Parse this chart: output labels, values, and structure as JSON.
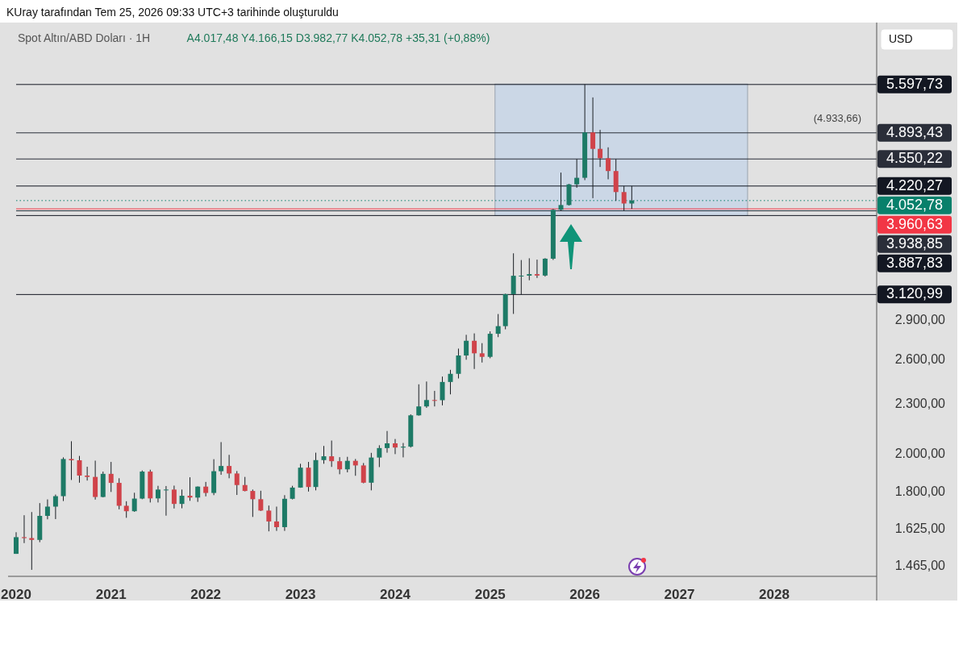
{
  "chart_data": {
    "type": "candlestick",
    "title": "Spot Altın/ABD Doları · 1H",
    "subtitle": "A4.017,48 Y4.166,15 D3.982,77 K4.052,78 +35,31 (+0,88%)",
    "annotations": [
      "KUray tarafından Tem 25, 2026 09:33 UTC+3 tarihinde oluşturuldu",
      "USD",
      {
        "text": "(4.933,66)",
        "x": "2028-09",
        "y": 4933.66
      }
    ],
    "log": "y",
    "x": [
      "2020-01",
      "2020-02",
      "2020-03",
      "2020-04",
      "2020-05",
      "2020-06",
      "2020-07",
      "2020-08",
      "2020-09",
      "2020-10",
      "2020-11",
      "2020-12",
      "2021-01",
      "2021-02",
      "2021-03",
      "2021-04",
      "2021-05",
      "2021-06",
      "2021-07",
      "2021-08",
      "2021-09",
      "2021-10",
      "2021-11",
      "2021-12",
      "2022-01",
      "2022-02",
      "2022-03",
      "2022-04",
      "2022-05",
      "2022-06",
      "2022-07",
      "2022-08",
      "2022-09",
      "2022-10",
      "2022-11",
      "2022-12",
      "2023-01",
      "2023-02",
      "2023-03",
      "2023-04",
      "2023-05",
      "2023-06",
      "2023-07",
      "2023-08",
      "2023-09",
      "2023-10",
      "2023-11",
      "2023-12",
      "2024-01",
      "2024-02",
      "2024-03",
      "2024-04",
      "2024-05",
      "2024-06",
      "2024-07",
      "2024-08",
      "2024-09",
      "2024-10",
      "2024-11",
      "2024-12",
      "2025-01",
      "2025-02",
      "2025-03",
      "2025-04",
      "2025-05",
      "2025-06",
      "2025-07",
      "2025-08",
      "2025-09",
      "2025-10",
      "2025-11",
      "2025-12",
      "2026-01",
      "2026-02",
      "2026-03",
      "2026-04",
      "2026-05",
      "2026-06",
      "2026-07"
    ],
    "ohlc": [
      [
        1517,
        1611,
        1517,
        1589
      ],
      [
        1589,
        1689,
        1563,
        1585
      ],
      [
        1585,
        1704,
        1451,
        1577
      ],
      [
        1577,
        1747,
        1567,
        1686
      ],
      [
        1686,
        1765,
        1670,
        1730
      ],
      [
        1730,
        1789,
        1671,
        1781
      ],
      [
        1781,
        1984,
        1757,
        1975
      ],
      [
        1975,
        2075,
        1863,
        1968
      ],
      [
        1968,
        1992,
        1849,
        1886
      ],
      [
        1886,
        1933,
        1860,
        1879
      ],
      [
        1879,
        1966,
        1764,
        1777
      ],
      [
        1777,
        1907,
        1775,
        1895
      ],
      [
        1895,
        1959,
        1802,
        1848
      ],
      [
        1848,
        1872,
        1717,
        1734
      ],
      [
        1734,
        1756,
        1677,
        1708
      ],
      [
        1708,
        1798,
        1705,
        1769
      ],
      [
        1769,
        1913,
        1766,
        1907
      ],
      [
        1907,
        1917,
        1750,
        1770
      ],
      [
        1770,
        1833,
        1750,
        1814
      ],
      [
        1814,
        1832,
        1687,
        1814
      ],
      [
        1814,
        1834,
        1721,
        1743
      ],
      [
        1743,
        1814,
        1722,
        1783
      ],
      [
        1783,
        1877,
        1758,
        1774
      ],
      [
        1774,
        1830,
        1753,
        1829
      ],
      [
        1829,
        1853,
        1780,
        1797
      ],
      [
        1797,
        1974,
        1786,
        1909
      ],
      [
        1909,
        2070,
        1890,
        1937
      ],
      [
        1937,
        1998,
        1872,
        1897
      ],
      [
        1897,
        1910,
        1787,
        1837
      ],
      [
        1837,
        1879,
        1805,
        1807
      ],
      [
        1807,
        1814,
        1681,
        1766
      ],
      [
        1766,
        1808,
        1709,
        1711
      ],
      [
        1711,
        1735,
        1615,
        1660
      ],
      [
        1660,
        1730,
        1617,
        1634
      ],
      [
        1634,
        1786,
        1617,
        1768
      ],
      [
        1768,
        1833,
        1765,
        1824
      ],
      [
        1824,
        1949,
        1823,
        1928
      ],
      [
        1928,
        1959,
        1804,
        1827
      ],
      [
        1827,
        2010,
        1810,
        1969
      ],
      [
        1969,
        2048,
        1949,
        1990
      ],
      [
        1990,
        2079,
        1932,
        1963
      ],
      [
        1963,
        1985,
        1893,
        1919
      ],
      [
        1919,
        1987,
        1903,
        1965
      ],
      [
        1965,
        1975,
        1885,
        1940
      ],
      [
        1940,
        1953,
        1846,
        1849
      ],
      [
        1849,
        2009,
        1810,
        1983
      ],
      [
        1983,
        2052,
        1931,
        2036
      ],
      [
        2036,
        2135,
        2010,
        2063
      ],
      [
        2063,
        2088,
        2002,
        2039
      ],
      [
        2039,
        2065,
        1984,
        2044
      ],
      [
        2044,
        2236,
        2039,
        2230
      ],
      [
        2230,
        2431,
        2228,
        2286
      ],
      [
        2286,
        2450,
        2277,
        2327
      ],
      [
        2327,
        2387,
        2286,
        2326
      ],
      [
        2326,
        2484,
        2293,
        2447
      ],
      [
        2447,
        2531,
        2364,
        2503
      ],
      [
        2503,
        2685,
        2471,
        2634
      ],
      [
        2634,
        2790,
        2603,
        2744
      ],
      [
        2744,
        2801,
        2537,
        2650
      ],
      [
        2650,
        2726,
        2583,
        2624
      ],
      [
        2624,
        2817,
        2614,
        2798
      ],
      [
        2798,
        2956,
        2772,
        2858
      ],
      [
        2858,
        3128,
        2833,
        3124
      ],
      [
        3124,
        3500,
        2957,
        3288
      ],
      [
        3288,
        3435,
        3120.99,
        3289
      ],
      [
        3289,
        3452,
        3247,
        3303
      ],
      [
        3303,
        3439,
        3268,
        3290
      ],
      [
        3290,
        3453,
        3281,
        3448
      ],
      [
        3448,
        3960,
        3436,
        3950
      ],
      [
        3950,
        4381,
        3938.85,
        4003
      ],
      [
        4003,
        4245,
        3998,
        4240
      ],
      [
        4240,
        4550,
        4200,
        4318
      ],
      [
        4318,
        5597.73,
        4290,
        4900
      ],
      [
        4900,
        5400,
        4080,
        4680
      ],
      [
        4680,
        4933.66,
        4450,
        4560
      ],
      [
        4560,
        4700,
        4300,
        4400
      ],
      [
        4400,
        4550.22,
        4050,
        4150
      ],
      [
        4150,
        4220.27,
        3938.85,
        4020
      ],
      [
        4020,
        4220,
        3960.63,
        4052.78
      ]
    ],
    "xlim": [
      "2020-01-01",
      "2029-01-30"
    ],
    "xticks": [
      {
        "value": "2020",
        "label": "2020"
      },
      {
        "value": "2021",
        "label": "2021"
      },
      {
        "value": "2022",
        "label": "2022"
      },
      {
        "value": "2023",
        "label": "2023"
      },
      {
        "value": "2024",
        "label": "2024"
      },
      {
        "value": "2025",
        "label": "2025"
      },
      {
        "value": "2026",
        "label": "2026"
      },
      {
        "value": "2027",
        "label": "2027"
      },
      {
        "value": "2028",
        "label": "2028"
      }
    ],
    "ylim": [
      1425,
      6650
    ],
    "yticks": [
      {
        "value": 1465,
        "label": "1.465,00"
      },
      {
        "value": 1625,
        "label": "1.625,00"
      },
      {
        "value": 1800,
        "label": "1.800,00"
      },
      {
        "value": 2000,
        "label": "2.000,00"
      },
      {
        "value": 2300,
        "label": "2.300,00"
      },
      {
        "value": 2600,
        "label": "2.600,00"
      },
      {
        "value": 2900,
        "label": "2.900,00"
      }
    ],
    "ref_lines": [
      {
        "axis": "y",
        "value": 5597.73,
        "label": "5.597,73",
        "color": "#131722"
      },
      {
        "axis": "y",
        "value": 4893.43,
        "label": "4.893,43",
        "color": "#2a2e39"
      },
      {
        "axis": "y",
        "value": 4550.22,
        "label": "4.550,22",
        "color": "#2a2e39"
      },
      {
        "axis": "y",
        "value": 4220.27,
        "label": "4.220,27",
        "color": "#131722"
      },
      {
        "axis": "y",
        "value": 4052.78,
        "label": "4.052,78",
        "color": "#08806b",
        "line_style": "dotted"
      },
      {
        "axis": "y",
        "value": 3960.63,
        "label": "3.960,63",
        "color": "#f23645"
      },
      {
        "axis": "y",
        "value": 3938.85,
        "label": "3.938,85",
        "color": "#2a2e39"
      },
      {
        "axis": "y",
        "value": 3887.83,
        "label": "3.887,83",
        "color": "#131722"
      },
      {
        "axis": "y",
        "value": 3120.99,
        "label": "3.120,99",
        "color": "#131722"
      }
    ]
  }
}
